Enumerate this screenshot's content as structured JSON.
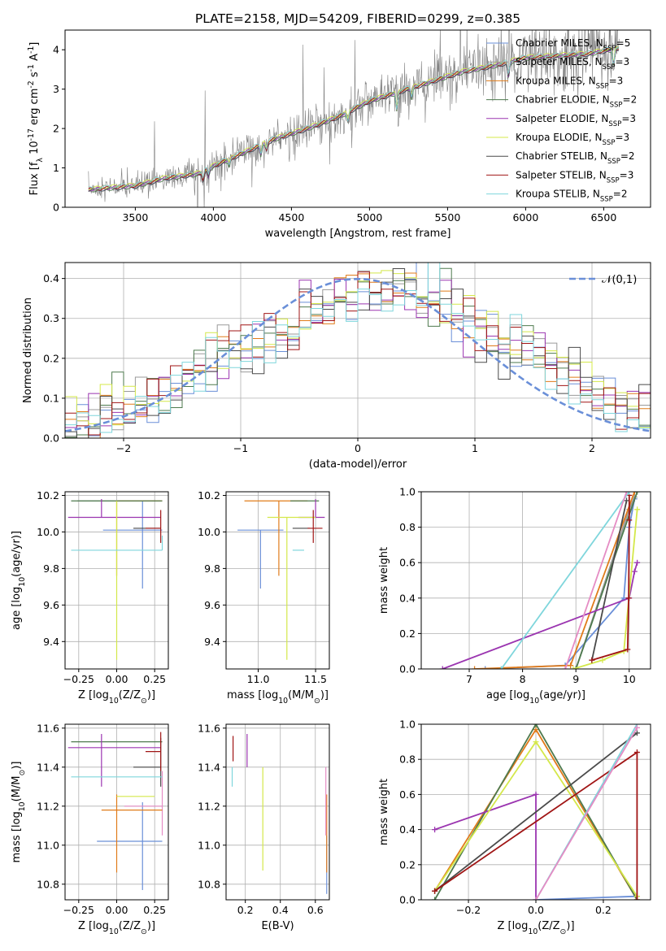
{
  "figure_title": "PLATE=2158, MJD=54209, FIBERID=0299, z=0.385",
  "colors": {
    "Chabrier MILES": "#6a8fd8",
    "Salpeter MILES": "#9a9a9a",
    "Kroupa MILES": "#e07b1a",
    "Chabrier ELODIE": "#4e7a4e",
    "Salpeter ELODIE": "#9b35b0",
    "Kroupa ELODIE": "#d4e84a",
    "Chabrier STELIB": "#4a4a4a",
    "Salpeter STELIB": "#a01515",
    "Kroupa STELIB": "#7fd6dc",
    "pink": "#e58cc4",
    "data": "#808080",
    "normal": "#6a8fd8"
  },
  "chart_data": [
    {
      "id": "spectrum",
      "type": "line",
      "xlabel": "wavelength [Angstrom, rest frame]",
      "ylabel": "Flux [f$_\\lambda$ 10$^{-17}$ erg cm$^{-2}$ s$^{-1}$ A$^{-1}$]",
      "xlim": [
        3050,
        6800
      ],
      "ylim": [
        0,
        4.5
      ],
      "xticks": [
        3500,
        4000,
        4500,
        5000,
        5500,
        6000,
        6500
      ],
      "yticks": [
        0,
        1,
        2,
        3,
        4
      ],
      "grid": false,
      "legend_placement": "top-right",
      "legend": [
        {
          "label": "Chabrier MILES, N",
          "sub": "SSP",
          "eq": "=5"
        },
        {
          "label": "Salpeter MILES, N",
          "sub": "SSP",
          "eq": "=3"
        },
        {
          "label": "Kroupa MILES, N",
          "sub": "SSP",
          "eq": "=3"
        },
        {
          "label": "Chabrier ELODIE, N",
          "sub": "SSP",
          "eq": "=2"
        },
        {
          "label": "Salpeter ELODIE, N",
          "sub": "SSP",
          "eq": "=3"
        },
        {
          "label": "Kroupa ELODIE, N",
          "sub": "SSP",
          "eq": "=3"
        },
        {
          "label": "Chabrier STELIB, N",
          "sub": "SSP",
          "eq": "=2"
        },
        {
          "label": "Salpeter STELIB, N",
          "sub": "SSP",
          "eq": "=3"
        },
        {
          "label": "Kroupa STELIB, N",
          "sub": "SSP",
          "eq": "=2"
        }
      ],
      "continuum": [
        [
          3200,
          0.45
        ],
        [
          3500,
          0.55
        ],
        [
          3700,
          0.75
        ],
        [
          3900,
          0.85
        ],
        [
          4000,
          1.05
        ],
        [
          4200,
          1.4
        ],
        [
          4400,
          1.75
        ],
        [
          4600,
          2.0
        ],
        [
          4800,
          2.3
        ],
        [
          5000,
          2.7
        ],
        [
          5200,
          2.95
        ],
        [
          5400,
          3.2
        ],
        [
          5600,
          3.45
        ],
        [
          5800,
          3.6
        ],
        [
          6000,
          3.8
        ],
        [
          6200,
          3.85
        ],
        [
          6400,
          3.9
        ],
        [
          6600,
          4.05
        ]
      ]
    },
    {
      "id": "residuals",
      "type": "histogram",
      "xlabel": "(data-model)/error",
      "ylabel": "Normed distribution",
      "xlim": [
        -2.5,
        2.5
      ],
      "ylim": [
        0,
        0.44
      ],
      "xticks": [
        -2,
        -1,
        0,
        1,
        2
      ],
      "yticks": [
        0.0,
        0.1,
        0.2,
        0.3,
        0.4
      ],
      "grid": true,
      "legend_placement": "top-right",
      "legend": [
        {
          "label": "𝒩(0,1)",
          "style": "dashed"
        }
      ],
      "bin_width": 0.1,
      "approx_heights": [
        0.03,
        0.04,
        0.05,
        0.06,
        0.07,
        0.08,
        0.08,
        0.09,
        0.1,
        0.12,
        0.15,
        0.18,
        0.2,
        0.21,
        0.22,
        0.23,
        0.24,
        0.25,
        0.26,
        0.27,
        0.29,
        0.31,
        0.32,
        0.34,
        0.35,
        0.36,
        0.36,
        0.37,
        0.37,
        0.37,
        0.36,
        0.35,
        0.34,
        0.32,
        0.3,
        0.28,
        0.26,
        0.25,
        0.24,
        0.22,
        0.21,
        0.19,
        0.17,
        0.15,
        0.13,
        0.11,
        0.1,
        0.08,
        0.07,
        0.06
      ]
    },
    {
      "id": "age-vs-Z",
      "type": "errorbar",
      "xlabel": "Z [log$_{10}$(Z/Z$_\\odot$)]",
      "ylabel": "age  [log$_{10}$(age/yr)]",
      "xlim": [
        -0.34,
        0.34
      ],
      "ylim": [
        9.25,
        10.22
      ],
      "xticks": [
        -0.25,
        0.0,
        0.25
      ],
      "xticklabels": [
        "−0.25",
        "0.00",
        "0.25"
      ],
      "yticks": [
        9.4,
        9.6,
        9.8,
        10.0,
        10.2
      ],
      "grid": true,
      "points": [
        {
          "series": "Chabrier MILES",
          "x": 0.17,
          "y": 10.01,
          "xerr": [
            0.26,
            0.13
          ],
          "yerr": [
            0.32,
            0.16
          ]
        },
        {
          "series": "Salpeter MILES",
          "x": 0.29,
          "y": 10.17,
          "xerr": [
            0.55,
            0.0
          ],
          "yerr": [
            0.0,
            0.0
          ]
        },
        {
          "series": "Kroupa MILES",
          "x": 0.0,
          "y": 10.17,
          "xerr": [
            0.0,
            0.3
          ],
          "yerr": [
            0.41,
            0.0
          ]
        },
        {
          "series": "Chabrier ELODIE",
          "x": 0.0,
          "y": 10.17,
          "xerr": [
            0.3,
            0.3
          ],
          "yerr": [
            0.0,
            0.0
          ]
        },
        {
          "series": "Salpeter ELODIE",
          "x": -0.1,
          "y": 10.08,
          "xerr": [
            0.22,
            0.39
          ],
          "yerr": [
            0.0,
            0.1
          ]
        },
        {
          "series": "Kroupa ELODIE",
          "x": 0.0,
          "y": 10.02,
          "xerr": [
            0.0,
            0.0
          ],
          "yerr": [
            0.72,
            0.15
          ]
        },
        {
          "series": "Chabrier STELIB",
          "x": 0.29,
          "y": 10.02,
          "xerr": [
            0.18,
            0.0
          ],
          "yerr": [
            0.0,
            0.0
          ]
        },
        {
          "series": "Salpeter STELIB",
          "x": 0.29,
          "y": 10.02,
          "xerr": [
            0.1,
            0.0
          ],
          "yerr": [
            0.08,
            0.1
          ]
        },
        {
          "series": "Kroupa STELIB",
          "x": 0.3,
          "y": 9.9,
          "xerr": [
            0.6,
            0.0
          ],
          "yerr": [
            0.0,
            0.08
          ]
        }
      ]
    },
    {
      "id": "age-vs-mass",
      "type": "errorbar",
      "xlabel": "mass [log$_{10}$(M/M$_\\odot$)]",
      "ylabel": "",
      "xlim": [
        10.72,
        11.62
      ],
      "ylim": [
        9.25,
        10.22
      ],
      "xticks": [
        11.0,
        11.5
      ],
      "xticklabels": [
        "11.0",
        "11.5"
      ],
      "yticks": [
        9.4,
        9.6,
        9.8,
        10.0,
        10.2
      ],
      "grid": true,
      "points": [
        {
          "series": "Chabrier MILES",
          "x": 11.02,
          "y": 10.01,
          "xerr": [
            0.2,
            0.2
          ],
          "yerr": [
            0.32,
            0.0
          ]
        },
        {
          "series": "Salpeter MILES",
          "x": 11.4,
          "y": 10.17,
          "xerr": [
            0.0,
            0.0
          ],
          "yerr": [
            0.0,
            0.0
          ]
        },
        {
          "series": "Kroupa MILES",
          "x": 11.18,
          "y": 10.17,
          "xerr": [
            0.3,
            0.25
          ],
          "yerr": [
            0.41,
            0.0
          ]
        },
        {
          "series": "Chabrier ELODIE",
          "x": 11.53,
          "y": 10.17,
          "xerr": [
            0.25,
            0.0
          ],
          "yerr": [
            0.0,
            0.0
          ]
        },
        {
          "series": "Salpeter ELODIE",
          "x": 11.5,
          "y": 10.08,
          "xerr": [
            0.15,
            0.08
          ],
          "yerr": [
            0.0,
            0.1
          ]
        },
        {
          "series": "Kroupa ELODIE",
          "x": 11.25,
          "y": 10.08,
          "xerr": [
            0.17,
            0.25
          ],
          "yerr": [
            0.78,
            0.0
          ]
        },
        {
          "series": "Chabrier STELIB",
          "x": 11.4,
          "y": 10.02,
          "xerr": [
            0.1,
            0.05
          ],
          "yerr": [
            0.0,
            0.0
          ]
        },
        {
          "series": "Salpeter STELIB",
          "x": 11.48,
          "y": 10.02,
          "xerr": [
            0.05,
            0.08
          ],
          "yerr": [
            0.08,
            0.1
          ]
        },
        {
          "series": "Kroupa STELIB",
          "x": 11.35,
          "y": 9.9,
          "xerr": [
            0.05,
            0.05
          ],
          "yerr": [
            0.0,
            0.0
          ]
        }
      ]
    },
    {
      "id": "mass-weight-vs-age",
      "type": "line",
      "xlabel": "age  [log$_{10}$(age/yr)]",
      "ylabel": "mass weight",
      "xlim": [
        6.1,
        10.4
      ],
      "ylim": [
        0.0,
        1.0
      ],
      "xticks": [
        7,
        8,
        9,
        10
      ],
      "yticks": [
        0.0,
        0.2,
        0.4,
        0.6,
        0.8,
        1.0
      ],
      "grid": true,
      "series": [
        {
          "name": "Chabrier MILES",
          "x": [
            7.3,
            8.8,
            9.9,
            10.0,
            10.1
          ],
          "y": [
            0.0,
            0.02,
            0.4,
            0.8,
            0.96
          ]
        },
        {
          "name": "Salpeter MILES",
          "x": [
            9.0,
            10.0,
            10.1
          ],
          "y": [
            0.0,
            0.9,
            0.97
          ]
        },
        {
          "name": "Kroupa MILES",
          "x": [
            7.1,
            8.9,
            10.1
          ],
          "y": [
            0.0,
            0.02,
            1.0
          ]
        },
        {
          "name": "Chabrier ELODIE",
          "x": [
            9.0,
            10.15
          ],
          "y": [
            0.0,
            1.0
          ]
        },
        {
          "name": "Salpeter ELODIE",
          "x": [
            6.5,
            10.0,
            10.1,
            10.15
          ],
          "y": [
            0.0,
            0.4,
            0.55,
            0.6
          ]
        },
        {
          "name": "Kroupa ELODIE",
          "x": [
            8.95,
            9.5,
            9.9,
            10.15
          ],
          "y": [
            0.0,
            0.05,
            0.1,
            0.9
          ]
        },
        {
          "name": "Chabrier STELIB",
          "x": [
            9.3,
            9.95
          ],
          "y": [
            0.05,
            0.95
          ]
        },
        {
          "name": "Salpeter STELIB",
          "x": [
            9.3,
            9.97,
            9.99,
            10.0,
            10.0
          ],
          "y": [
            0.05,
            0.11,
            0.4,
            0.84,
            0.98
          ]
        },
        {
          "name": "Kroupa STELIB",
          "x": [
            7.6,
            10.0
          ],
          "y": [
            0.0,
            1.0
          ]
        },
        {
          "name": "pink",
          "x": [
            8.8,
            9.95
          ],
          "y": [
            0.0,
            1.0
          ]
        }
      ]
    },
    {
      "id": "mass-vs-Z",
      "type": "errorbar",
      "xlabel": "Z [log$_{10}$(Z/Z$_\\odot$)]",
      "ylabel": "mass [log$_{10}$(M/M$_\\odot$)]",
      "xlim": [
        -0.34,
        0.34
      ],
      "ylim": [
        10.72,
        11.62
      ],
      "xticks": [
        -0.25,
        0.0,
        0.25
      ],
      "xticklabels": [
        "−0.25",
        "0.00",
        "0.25"
      ],
      "yticks": [
        10.8,
        11.0,
        11.2,
        11.4,
        11.6
      ],
      "grid": true,
      "points": [
        {
          "series": "Chabrier MILES",
          "x": 0.17,
          "y": 11.02,
          "xerr": [
            0.3,
            0.13
          ],
          "yerr": [
            0.25,
            0.2
          ]
        },
        {
          "series": "pink",
          "x": 0.3,
          "y": 11.2,
          "xerr": [
            0.25,
            0.0
          ],
          "yerr": [
            0.15,
            0.18
          ]
        },
        {
          "series": "Kroupa MILES",
          "x": 0.0,
          "y": 11.18,
          "xerr": [
            0.1,
            0.3
          ],
          "yerr": [
            0.32,
            0.08
          ]
        },
        {
          "series": "Chabrier ELODIE",
          "x": 0.0,
          "y": 11.53,
          "xerr": [
            0.3,
            0.3
          ],
          "yerr": [
            0.0,
            0.0
          ]
        },
        {
          "series": "Salpeter ELODIE",
          "x": -0.1,
          "y": 11.5,
          "xerr": [
            0.22,
            0.39
          ],
          "yerr": [
            0.2,
            0.07
          ]
        },
        {
          "series": "Kroupa ELODIE",
          "x": 0.0,
          "y": 11.25,
          "xerr": [
            0.0,
            0.25
          ],
          "yerr": [
            0.0,
            0.0
          ]
        },
        {
          "series": "Chabrier STELIB",
          "x": 0.29,
          "y": 11.4,
          "xerr": [
            0.18,
            0.0
          ],
          "yerr": [
            0.1,
            0.15
          ]
        },
        {
          "series": "Salpeter STELIB",
          "x": 0.29,
          "y": 11.48,
          "xerr": [
            0.1,
            0.0
          ],
          "yerr": [
            0.1,
            0.1
          ]
        },
        {
          "series": "Kroupa STELIB",
          "x": 0.3,
          "y": 11.35,
          "xerr": [
            0.6,
            0.0
          ],
          "yerr": [
            0.0,
            0.0
          ]
        }
      ]
    },
    {
      "id": "mass-vs-EBV",
      "type": "errorbar",
      "xlabel": "E(B-V)",
      "ylabel": "",
      "xlim": [
        0.09,
        0.68
      ],
      "ylim": [
        10.72,
        11.62
      ],
      "xticks": [
        0.2,
        0.4,
        0.6
      ],
      "xticklabels": [
        "0.2",
        "0.4",
        "0.6"
      ],
      "yticks": [
        10.8,
        11.0,
        11.2,
        11.4,
        11.6
      ],
      "grid": true,
      "points": [
        {
          "series": "Chabrier MILES",
          "x": 0.665,
          "y": 11.0,
          "xerr": [
            0,
            0
          ],
          "yerr": [
            0.25,
            0.05
          ]
        },
        {
          "series": "Salpeter ELODIE",
          "x": 0.21,
          "y": 11.5,
          "xerr": [
            0,
            0
          ],
          "yerr": [
            0.1,
            0.07
          ]
        },
        {
          "series": "Kroupa ELODIE",
          "x": 0.3,
          "y": 11.15,
          "xerr": [
            0,
            0
          ],
          "yerr": [
            0.28,
            0.25
          ]
        },
        {
          "series": "Salpeter STELIB",
          "x": 0.13,
          "y": 11.48,
          "xerr": [
            0,
            0
          ],
          "yerr": [
            0.05,
            0.08
          ]
        },
        {
          "series": "Kroupa STELIB",
          "x": 0.125,
          "y": 11.35,
          "xerr": [
            0,
            0
          ],
          "yerr": [
            0.05,
            0.05
          ]
        },
        {
          "series": "Kroupa MILES",
          "x": 0.665,
          "y": 11.18,
          "xerr": [
            0,
            0
          ],
          "yerr": [
            0.32,
            0.08
          ]
        },
        {
          "series": "pink",
          "x": 0.66,
          "y": 11.2,
          "xerr": [
            0,
            0
          ],
          "yerr": [
            0.15,
            0.2
          ]
        }
      ]
    },
    {
      "id": "mass-weight-vs-Z",
      "type": "line",
      "xlabel": "Z [log$_{10}$(Z/Z$_\\odot$)]",
      "ylabel": "mass weight",
      "xlim": [
        -0.34,
        0.34
      ],
      "ylim": [
        0.0,
        1.0
      ],
      "xticks": [
        -0.2,
        0.0,
        0.2
      ],
      "xticklabels": [
        "−0.2",
        "0.0",
        "0.2"
      ],
      "yticks": [
        0.0,
        0.2,
        0.4,
        0.6,
        0.8,
        1.0
      ],
      "grid": true,
      "series": [
        {
          "name": "Chabrier MILES",
          "x": [
            0.0,
            0.3
          ],
          "y": [
            0.0,
            0.02
          ]
        },
        {
          "name": "Kroupa MILES",
          "x": [
            -0.3,
            0.0,
            0.3
          ],
          "y": [
            0.05,
            0.97,
            0.0
          ]
        },
        {
          "name": "Chabrier ELODIE",
          "x": [
            -0.3,
            0.0,
            0.3
          ],
          "y": [
            0.0,
            1.0,
            0.0
          ]
        },
        {
          "name": "Salpeter ELODIE",
          "x": [
            -0.3,
            0.0,
            0.0
          ],
          "y": [
            0.4,
            0.6,
            0.0
          ]
        },
        {
          "name": "Kroupa ELODIE",
          "x": [
            -0.3,
            0.0,
            0.3
          ],
          "y": [
            0.05,
            0.9,
            0.02
          ]
        },
        {
          "name": "Chabrier STELIB",
          "x": [
            -0.3,
            0.3
          ],
          "y": [
            0.05,
            0.95
          ]
        },
        {
          "name": "Salpeter STELIB",
          "x": [
            -0.3,
            0.3,
            0.3
          ],
          "y": [
            0.05,
            0.84,
            0.0
          ]
        },
        {
          "name": "Kroupa STELIB",
          "x": [
            0.0,
            0.3
          ],
          "y": [
            0.0,
            1.0
          ]
        },
        {
          "name": "pink",
          "x": [
            0.0,
            0.3
          ],
          "y": [
            0.0,
            0.98
          ]
        }
      ]
    }
  ]
}
